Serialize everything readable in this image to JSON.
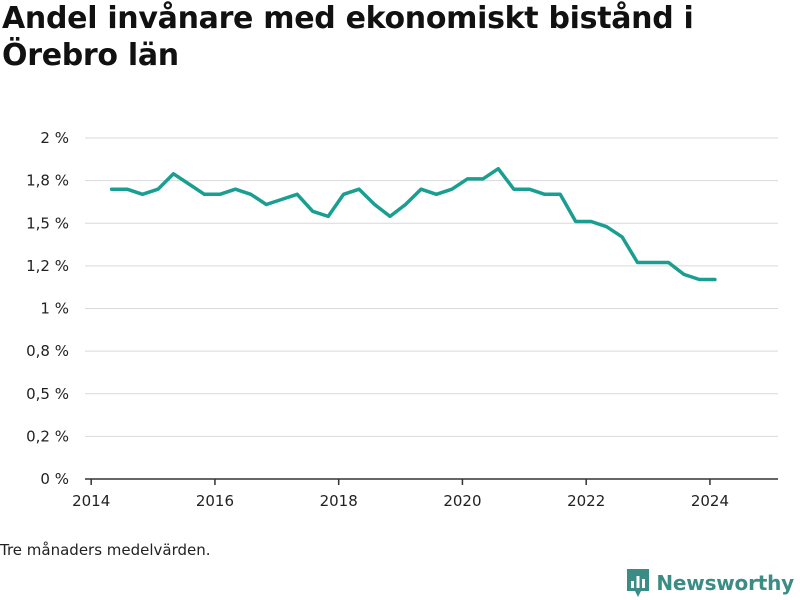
{
  "title": "Andel invånare med ekonomiskt bistånd i Örebro län",
  "note": "Tre månaders medelvärden.",
  "brand": {
    "name": "Newsworthy",
    "icon": "newsworthy-logo-icon"
  },
  "colors": {
    "line": "#1a9e91",
    "grid": "#d9d9d9",
    "axis": "#333333",
    "brand": "#3a8c84"
  },
  "chart_data": {
    "type": "line",
    "title": "Andel invånare med ekonomiskt bistånd i Örebro län",
    "xlabel": "",
    "ylabel": "",
    "xlim": [
      2013.9,
      2025.1
    ],
    "ylim": [
      0,
      2.0
    ],
    "grid": true,
    "x_ticks": [
      {
        "value": 2014,
        "label": "2014"
      },
      {
        "value": 2016,
        "label": "2016"
      },
      {
        "value": 2018,
        "label": "2018"
      },
      {
        "value": 2020,
        "label": "2020"
      },
      {
        "value": 2022,
        "label": "2022"
      },
      {
        "value": 2024,
        "label": "2024"
      }
    ],
    "y_ticks": [
      {
        "value": 0,
        "label": "0 %"
      },
      {
        "value": 0.25,
        "label": "0,2 %"
      },
      {
        "value": 0.5,
        "label": "0,5 %"
      },
      {
        "value": 0.75,
        "label": "0,8 %"
      },
      {
        "value": 1.0,
        "label": "1 %"
      },
      {
        "value": 1.25,
        "label": "1,2 %"
      },
      {
        "value": 1.5,
        "label": "1,5 %"
      },
      {
        "value": 1.75,
        "label": "1,8 %"
      },
      {
        "value": 2.0,
        "label": "2 %"
      }
    ],
    "series": [
      {
        "x": [
          2014.33,
          2014.58,
          2014.83,
          2015.08,
          2015.33,
          2015.58,
          2015.83,
          2016.08,
          2016.33,
          2016.58,
          2016.83,
          2017.08,
          2017.33,
          2017.58,
          2017.83,
          2018.08,
          2018.33,
          2018.58,
          2018.83,
          2019.08,
          2019.33,
          2019.58,
          2019.83,
          2020.08,
          2020.33,
          2020.58,
          2020.83,
          2021.08,
          2021.33,
          2021.58,
          2021.83,
          2022.08,
          2022.33,
          2022.58,
          2022.83,
          2023.08,
          2023.33,
          2023.58,
          2023.83,
          2024.08
        ],
        "y": [
          1.7,
          1.7,
          1.67,
          1.7,
          1.79,
          1.73,
          1.67,
          1.67,
          1.7,
          1.67,
          1.61,
          1.64,
          1.67,
          1.57,
          1.54,
          1.67,
          1.7,
          1.61,
          1.54,
          1.61,
          1.7,
          1.67,
          1.7,
          1.76,
          1.76,
          1.82,
          1.7,
          1.7,
          1.67,
          1.67,
          1.51,
          1.51,
          1.48,
          1.42,
          1.27,
          1.27,
          1.27,
          1.2,
          1.17,
          1.17
        ]
      }
    ]
  }
}
